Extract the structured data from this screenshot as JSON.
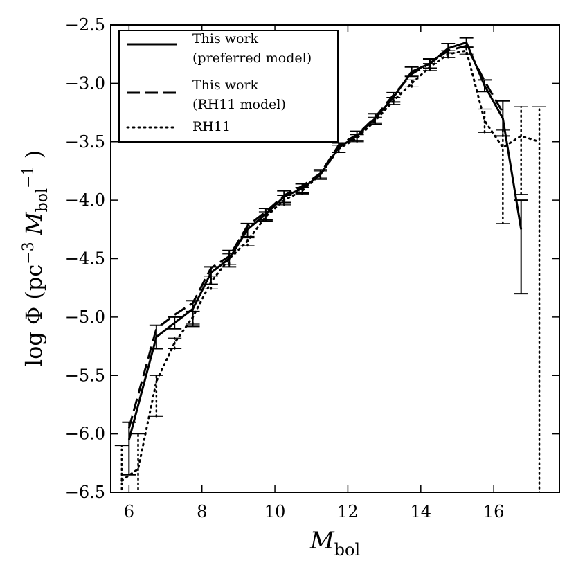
{
  "chart_data": {
    "type": "line",
    "xlabel": {
      "main": "M",
      "sub": "bol"
    },
    "ylabel": {
      "pre": "log Φ (pc",
      "sup1": "−3",
      "m": " M",
      "sub": "bol",
      "sup2": "−1",
      "post": " )"
    },
    "xlim": [
      5.5,
      17.8
    ],
    "ylim": [
      -6.5,
      -2.5
    ],
    "xticks": [
      6,
      8,
      10,
      12,
      14,
      16
    ],
    "xtick_labels": [
      "6",
      "8",
      "10",
      "12",
      "14",
      "16"
    ],
    "yticks": [
      -6.5,
      -6.0,
      -5.5,
      -5.0,
      -4.5,
      -4.0,
      -3.5,
      -3.0,
      -2.5
    ],
    "ytick_labels": [
      "−6.5",
      "−6.0",
      "−5.5",
      "−5.0",
      "−4.5",
      "−4.0",
      "−3.5",
      "−3.0",
      "−2.5"
    ],
    "legend": {
      "placement": "top-left",
      "entries": [
        {
          "style": "solid",
          "line1": "This work",
          "line2": "(preferred model)"
        },
        {
          "style": "dashed",
          "line1": "This work",
          "line2": "(RH11 model)"
        },
        {
          "style": "dotted",
          "line1": "RH11",
          "line2": ""
        }
      ]
    },
    "series": [
      {
        "name": "This work (preferred model)",
        "style": "solid",
        "x": [
          6.0,
          6.75,
          7.25,
          7.75,
          8.25,
          8.75,
          9.25,
          9.75,
          10.25,
          10.75,
          11.25,
          11.75,
          12.25,
          12.75,
          13.25,
          13.75,
          14.25,
          14.75,
          15.25,
          15.75,
          16.25,
          16.75
        ],
        "y": [
          -6.05,
          -5.17,
          -5.05,
          -4.93,
          -4.62,
          -4.5,
          -4.25,
          -4.12,
          -3.97,
          -3.9,
          -3.78,
          -3.55,
          -3.45,
          -3.3,
          -3.12,
          -2.9,
          -2.83,
          -2.7,
          -2.65,
          -3.02,
          -3.3,
          -4.25
        ],
        "err_lo": [
          0.3,
          0.1,
          0.05,
          0.15,
          0.1,
          0.07,
          0.07,
          0.05,
          0.05,
          0.04,
          0.04,
          0.04,
          0.04,
          0.04,
          0.04,
          0.04,
          0.04,
          0.04,
          0.04,
          0.05,
          0.15,
          0.55
        ],
        "err_hi": [
          0.15,
          0.1,
          0.05,
          0.07,
          0.05,
          0.07,
          0.05,
          0.05,
          0.05,
          0.04,
          0.04,
          0.04,
          0.04,
          0.04,
          0.04,
          0.04,
          0.04,
          0.04,
          0.04,
          0.05,
          0.15,
          0.25
        ]
      },
      {
        "name": "This work (RH11 model)",
        "style": "dashed",
        "x": [
          6.0,
          6.75,
          7.25,
          7.75,
          8.25,
          8.75,
          9.25,
          9.75,
          10.25,
          10.75,
          11.25,
          11.75,
          12.25,
          12.75,
          13.25,
          13.75,
          14.25,
          14.75,
          15.25,
          15.75,
          16.25
        ],
        "y": [
          -5.95,
          -5.1,
          -4.98,
          -4.88,
          -4.58,
          -4.48,
          -4.22,
          -4.1,
          -3.96,
          -3.88,
          -3.77,
          -3.53,
          -3.44,
          -3.29,
          -3.1,
          -2.92,
          -2.83,
          -2.72,
          -2.68,
          -2.98,
          -3.25
        ]
      },
      {
        "name": "RH11",
        "style": "dotted",
        "x": [
          5.8,
          6.25,
          6.75,
          7.25,
          7.75,
          8.25,
          8.75,
          9.25,
          9.75,
          10.25,
          10.75,
          11.25,
          11.75,
          12.25,
          12.75,
          13.25,
          13.75,
          14.25,
          14.75,
          15.25,
          15.75,
          16.25,
          16.75,
          17.25
        ],
        "y": [
          -6.4,
          -6.3,
          -5.55,
          -5.22,
          -5.0,
          -4.7,
          -4.5,
          -4.35,
          -4.14,
          -4.0,
          -3.92,
          -3.78,
          -3.56,
          -3.47,
          -3.32,
          -3.15,
          -3.0,
          -2.86,
          -2.75,
          -2.72,
          -3.32,
          -3.55,
          -3.45,
          -3.5
        ],
        "err_lo": [
          0.2,
          0.3,
          0.3,
          0.05,
          0.06,
          0.06,
          0.05,
          0.04,
          0.04,
          0.04,
          0.03,
          0.03,
          0.03,
          0.03,
          0.03,
          0.03,
          0.03,
          0.03,
          0.03,
          0.03,
          0.1,
          0.65,
          0.5,
          3.3
        ],
        "err_hi": [
          0.3,
          0.3,
          0.05,
          0.04,
          0.05,
          0.05,
          0.04,
          0.04,
          0.04,
          0.04,
          0.03,
          0.03,
          0.03,
          0.03,
          0.03,
          0.03,
          0.03,
          0.03,
          0.03,
          0.03,
          0.1,
          0.15,
          0.25,
          0.3
        ]
      }
    ]
  }
}
